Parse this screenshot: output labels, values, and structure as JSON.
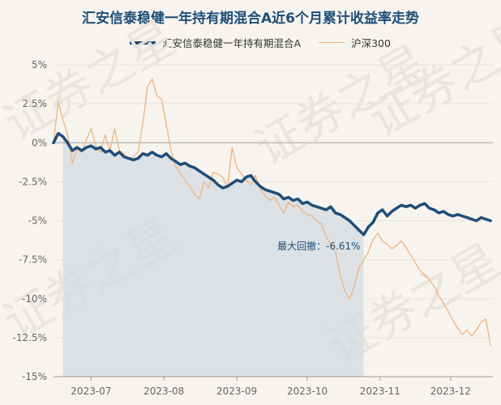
{
  "chart_data": {
    "type": "line",
    "title": "汇安信泰稳健一年持有期混合A近6个月累计收益率走势",
    "watermark": "证券之星",
    "colors": {
      "fund": "#1f4e79",
      "index": "#f0b27a",
      "drawdown_fill": "#d3dbe3"
    },
    "ylim": [
      -15,
      5
    ],
    "yticks": [
      5,
      2.5,
      0,
      -2.5,
      -5,
      -7.5,
      -10,
      -12.5,
      -15
    ],
    "ytick_labels": [
      "5%",
      "2.5%",
      "0%",
      "-2.5%",
      "-5%",
      "-7.5%",
      "-10%",
      "-12.5%",
      "-15%"
    ],
    "xlim": [
      "2023-06-15",
      "2023-12-19"
    ],
    "xticks": [
      "2023-07-01",
      "2023-08-01",
      "2023-09-01",
      "2023-10-01",
      "2023-11-01",
      "2023-12-01"
    ],
    "xtick_labels": [
      "2023-07",
      "2023-08",
      "2023-09",
      "2023-10",
      "2023-11",
      "2023-12"
    ],
    "grid": "horizontal",
    "legend_position": "top-center",
    "series": [
      {
        "name": "汇安信泰稳健一年持有期混合A",
        "x": [
          "2023-06-15",
          "2023-06-17",
          "2023-06-19",
          "2023-06-21",
          "2023-06-23",
          "2023-06-25",
          "2023-06-27",
          "2023-06-29",
          "2023-07-01",
          "2023-07-03",
          "2023-07-05",
          "2023-07-07",
          "2023-07-09",
          "2023-07-11",
          "2023-07-13",
          "2023-07-15",
          "2023-07-17",
          "2023-07-19",
          "2023-07-21",
          "2023-07-23",
          "2023-07-25",
          "2023-07-27",
          "2023-07-29",
          "2023-07-31",
          "2023-08-02",
          "2023-08-04",
          "2023-08-06",
          "2023-08-08",
          "2023-08-10",
          "2023-08-12",
          "2023-08-14",
          "2023-08-16",
          "2023-08-18",
          "2023-08-20",
          "2023-08-22",
          "2023-08-24",
          "2023-08-26",
          "2023-08-28",
          "2023-08-30",
          "2023-09-01",
          "2023-09-03",
          "2023-09-05",
          "2023-09-07",
          "2023-09-09",
          "2023-09-11",
          "2023-09-13",
          "2023-09-15",
          "2023-09-17",
          "2023-09-19",
          "2023-09-21",
          "2023-09-23",
          "2023-09-25",
          "2023-09-27",
          "2023-09-29",
          "2023-10-01",
          "2023-10-03",
          "2023-10-05",
          "2023-10-07",
          "2023-10-09",
          "2023-10-11",
          "2023-10-13",
          "2023-10-15",
          "2023-10-17",
          "2023-10-19",
          "2023-10-21",
          "2023-10-23",
          "2023-10-25",
          "2023-10-27",
          "2023-10-29",
          "2023-10-31",
          "2023-11-02",
          "2023-11-04",
          "2023-11-06",
          "2023-11-08",
          "2023-11-10",
          "2023-11-12",
          "2023-11-14",
          "2023-11-16",
          "2023-11-18",
          "2023-11-20",
          "2023-11-22",
          "2023-11-24",
          "2023-11-26",
          "2023-11-28",
          "2023-11-30",
          "2023-12-02",
          "2023-12-04",
          "2023-12-06",
          "2023-12-08",
          "2023-12-10",
          "2023-12-12",
          "2023-12-14",
          "2023-12-16",
          "2023-12-18"
        ],
        "values": [
          0.0,
          0.6,
          0.4,
          0.0,
          -0.5,
          -0.3,
          -0.5,
          -0.3,
          -0.2,
          -0.4,
          -0.3,
          -0.6,
          -0.5,
          -0.8,
          -0.6,
          -0.9,
          -1.0,
          -1.1,
          -1.0,
          -0.7,
          -0.8,
          -0.6,
          -0.8,
          -0.9,
          -0.7,
          -1.0,
          -1.2,
          -1.4,
          -1.3,
          -1.5,
          -1.6,
          -1.8,
          -2.0,
          -2.2,
          -2.4,
          -2.7,
          -2.9,
          -2.8,
          -2.6,
          -2.4,
          -2.5,
          -2.2,
          -2.1,
          -2.5,
          -2.8,
          -3.0,
          -3.1,
          -3.2,
          -3.3,
          -3.6,
          -3.5,
          -3.7,
          -3.6,
          -3.9,
          -3.8,
          -4.0,
          -4.1,
          -4.2,
          -4.3,
          -4.1,
          -4.5,
          -4.6,
          -4.8,
          -5.0,
          -5.3,
          -5.6,
          -5.9,
          -5.4,
          -5.1,
          -4.5,
          -4.3,
          -4.7,
          -4.4,
          -4.2,
          -4.0,
          -4.1,
          -4.0,
          -4.2,
          -4.0,
          -3.9,
          -4.2,
          -4.3,
          -4.5,
          -4.4,
          -4.6,
          -4.7,
          -4.6,
          -4.7,
          -4.8,
          -4.9,
          -5.0,
          -4.8,
          -4.9,
          -5.0
        ]
      },
      {
        "name": "沪深300",
        "x": [
          "2023-06-15",
          "2023-06-17",
          "2023-06-19",
          "2023-06-21",
          "2023-06-23",
          "2023-06-25",
          "2023-06-27",
          "2023-06-29",
          "2023-07-01",
          "2023-07-03",
          "2023-07-05",
          "2023-07-07",
          "2023-07-09",
          "2023-07-11",
          "2023-07-13",
          "2023-07-15",
          "2023-07-17",
          "2023-07-19",
          "2023-07-21",
          "2023-07-23",
          "2023-07-25",
          "2023-07-27",
          "2023-07-29",
          "2023-07-31",
          "2023-08-02",
          "2023-08-04",
          "2023-08-06",
          "2023-08-08",
          "2023-08-10",
          "2023-08-12",
          "2023-08-14",
          "2023-08-16",
          "2023-08-18",
          "2023-08-20",
          "2023-08-22",
          "2023-08-24",
          "2023-08-26",
          "2023-08-28",
          "2023-08-30",
          "2023-09-01",
          "2023-09-03",
          "2023-09-05",
          "2023-09-07",
          "2023-09-09",
          "2023-09-11",
          "2023-09-13",
          "2023-09-15",
          "2023-09-17",
          "2023-09-19",
          "2023-09-21",
          "2023-09-23",
          "2023-09-25",
          "2023-09-27",
          "2023-09-29",
          "2023-10-01",
          "2023-10-03",
          "2023-10-05",
          "2023-10-07",
          "2023-10-09",
          "2023-10-11",
          "2023-10-13",
          "2023-10-15",
          "2023-10-17",
          "2023-10-19",
          "2023-10-21",
          "2023-10-23",
          "2023-10-25",
          "2023-10-27",
          "2023-10-29",
          "2023-10-31",
          "2023-11-02",
          "2023-11-04",
          "2023-11-06",
          "2023-11-08",
          "2023-11-10",
          "2023-11-12",
          "2023-11-14",
          "2023-11-16",
          "2023-11-18",
          "2023-11-20",
          "2023-11-22",
          "2023-11-24",
          "2023-11-26",
          "2023-11-28",
          "2023-11-30",
          "2023-12-02",
          "2023-12-04",
          "2023-12-06",
          "2023-12-08",
          "2023-12-10",
          "2023-12-12",
          "2023-12-14",
          "2023-12-16",
          "2023-12-18"
        ],
        "values": [
          0.0,
          2.6,
          1.5,
          0.5,
          -1.3,
          -0.4,
          -0.6,
          0.2,
          0.9,
          -0.2,
          -0.6,
          0.5,
          -0.5,
          0.9,
          -0.5,
          -0.7,
          -1.0,
          -0.9,
          -0.6,
          1.2,
          3.6,
          4.1,
          3.0,
          2.8,
          1.2,
          -0.5,
          -1.5,
          -2.0,
          -2.4,
          -2.8,
          -3.3,
          -3.6,
          -2.5,
          -2.9,
          -1.9,
          -2.0,
          -2.2,
          -2.9,
          -0.3,
          -1.6,
          -2.0,
          -2.4,
          -2.7,
          -2.1,
          -3.0,
          -3.4,
          -3.7,
          -3.5,
          -4.0,
          -4.5,
          -3.8,
          -4.1,
          -4.0,
          -4.4,
          -4.6,
          -4.7,
          -5.0,
          -5.2,
          -6.0,
          -6.5,
          -7.0,
          -8.5,
          -9.5,
          -10.0,
          -9.2,
          -8.0,
          -7.5,
          -7.0,
          -6.2,
          -5.8,
          -6.3,
          -6.5,
          -6.8,
          -6.6,
          -6.3,
          -6.7,
          -7.2,
          -7.7,
          -8.2,
          -8.5,
          -8.8,
          -9.2,
          -9.8,
          -10.3,
          -10.8,
          -11.4,
          -11.9,
          -12.3,
          -12.0,
          -12.4,
          -12.0,
          -11.5,
          -11.3,
          -13.0
        ]
      }
    ],
    "annotation": {
      "text": "最大回撤：-6.61%",
      "x": "2023-10-25",
      "y": -5.9
    },
    "drawdown_region": {
      "start": "2023-06-18",
      "end": "2023-10-25"
    }
  }
}
